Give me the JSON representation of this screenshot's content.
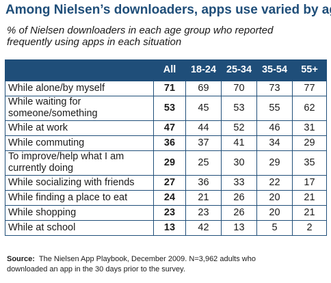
{
  "title": "Among Nielsen’s downloaders, apps use varied by age",
  "subtitle_lines": [
    "% of Nielsen downloaders in each age group who reported",
    "frequently using apps in each situation"
  ],
  "colors": {
    "header_bg": "#1f4e79",
    "header_text": "#ffffff",
    "title": "#1f4e79",
    "grid": "#1f4e79"
  },
  "chart_data": {
    "type": "table",
    "columns": [
      "",
      "All",
      "18-24",
      "25-34",
      "35-54",
      "55+"
    ],
    "rows": [
      {
        "label_lines": [
          "While alone/by myself"
        ],
        "values": [
          71,
          69,
          70,
          73,
          77
        ]
      },
      {
        "label_lines": [
          "While waiting for",
          "someone/something"
        ],
        "values": [
          53,
          45,
          53,
          55,
          62
        ]
      },
      {
        "label_lines": [
          "While at work"
        ],
        "values": [
          47,
          44,
          52,
          46,
          31
        ]
      },
      {
        "label_lines": [
          "While commuting"
        ],
        "values": [
          36,
          37,
          41,
          34,
          29
        ]
      },
      {
        "label_lines": [
          "To improve/help what I am",
          "currently doing"
        ],
        "values": [
          29,
          25,
          30,
          29,
          35
        ]
      },
      {
        "label_lines": [
          "While socializing with friends"
        ],
        "values": [
          27,
          36,
          33,
          22,
          17
        ]
      },
      {
        "label_lines": [
          "While finding a place to eat"
        ],
        "values": [
          24,
          21,
          26,
          20,
          21
        ]
      },
      {
        "label_lines": [
          "While shopping"
        ],
        "values": [
          23,
          23,
          26,
          20,
          21
        ]
      },
      {
        "label_lines": [
          "While at school"
        ],
        "values": [
          13,
          42,
          13,
          5,
          2
        ]
      }
    ]
  },
  "source": {
    "label": "Source:",
    "line1": "The Nielsen App Playbook, December 2009. N=3,962 adults who",
    "line2": "downloaded an app in the 30 days prior to the survey."
  }
}
